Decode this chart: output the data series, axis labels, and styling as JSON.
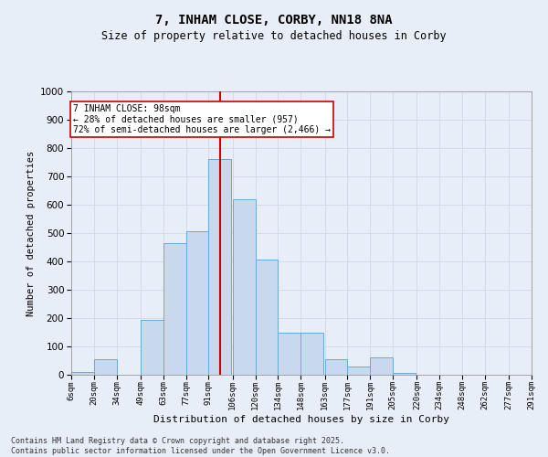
{
  "title": "7, INHAM CLOSE, CORBY, NN18 8NA",
  "subtitle": "Size of property relative to detached houses in Corby",
  "xlabel": "Distribution of detached houses by size in Corby",
  "ylabel": "Number of detached properties",
  "footer": "Contains HM Land Registry data © Crown copyright and database right 2025.\nContains public sector information licensed under the Open Government Licence v3.0.",
  "bins": [
    6,
    20,
    34,
    49,
    63,
    77,
    91,
    106,
    120,
    134,
    148,
    163,
    177,
    191,
    205,
    220,
    234,
    248,
    262,
    277,
    291
  ],
  "bin_labels": [
    "6sqm",
    "20sqm",
    "34sqm",
    "49sqm",
    "63sqm",
    "77sqm",
    "91sqm",
    "106sqm",
    "120sqm",
    "134sqm",
    "148sqm",
    "163sqm",
    "177sqm",
    "191sqm",
    "205sqm",
    "220sqm",
    "234sqm",
    "248sqm",
    "262sqm",
    "277sqm",
    "291sqm"
  ],
  "bar_values": [
    10,
    55,
    0,
    195,
    465,
    505,
    760,
    620,
    405,
    150,
    150,
    55,
    30,
    60,
    5,
    0,
    0,
    0,
    0,
    0
  ],
  "bar_color": "#c8d9ee",
  "bar_edge_color": "#6aaad4",
  "vline_x": 98,
  "vline_color": "#cc0000",
  "annotation_title": "7 INHAM CLOSE: 98sqm",
  "annotation_line1": "← 28% of detached houses are smaller (957)",
  "annotation_line2": "72% of semi-detached houses are larger (2,466) →",
  "annotation_box_color": "#ffffff",
  "annotation_box_edge": "#cc0000",
  "ylim": [
    0,
    1000
  ],
  "yticks": [
    0,
    100,
    200,
    300,
    400,
    500,
    600,
    700,
    800,
    900,
    1000
  ],
  "bg_color": "#e8eef8",
  "axes_bg_color": "#e8eef8",
  "grid_color": "#d0d8e8",
  "figsize": [
    6.0,
    5.0
  ],
  "dpi": 100
}
